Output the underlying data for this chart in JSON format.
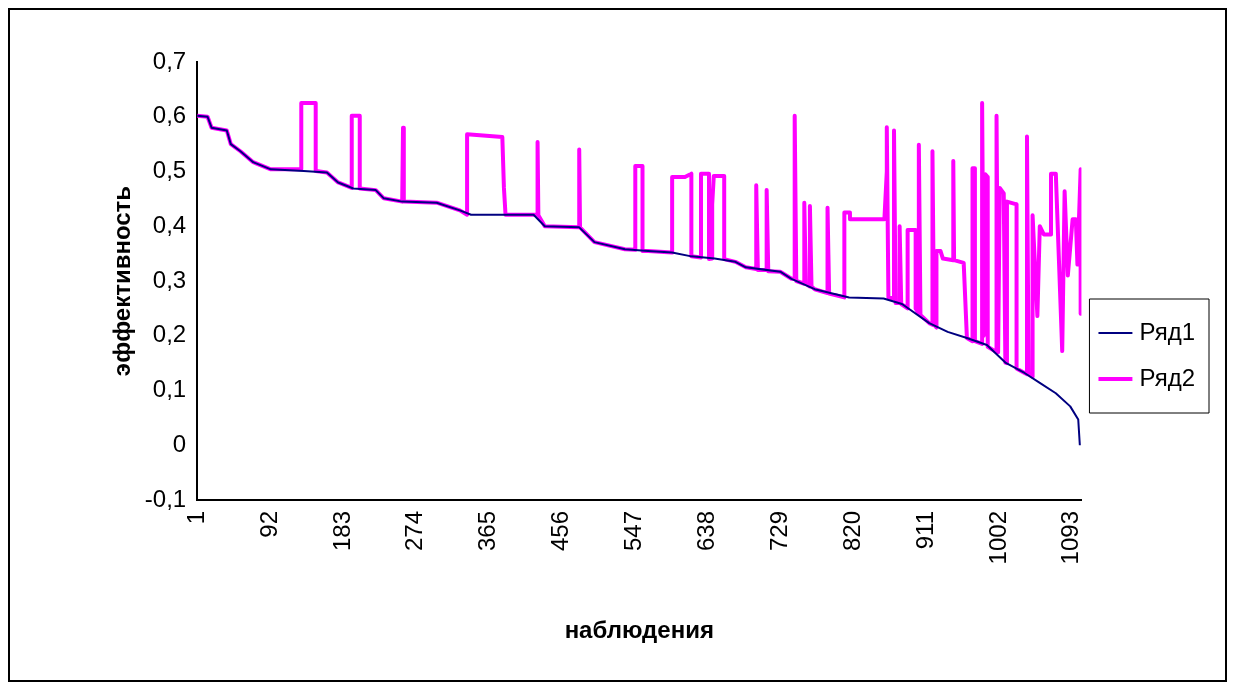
{
  "chart_data": {
    "type": "line",
    "xlabel": "наблюдения",
    "ylabel": "эффективность",
    "legend": "right",
    "marker": "none",
    "xlim": [
      1,
      1105
    ],
    "xticks": [
      1,
      92,
      183,
      274,
      365,
      456,
      547,
      638,
      729,
      820,
      911,
      1002,
      1093
    ],
    "ylim": [
      -0.1,
      0.7
    ],
    "yticks": [
      {
        "value": -0.1,
        "label": "-0,1"
      },
      {
        "value": 0,
        "label": "0"
      },
      {
        "value": 0.1,
        "label": "0,1"
      },
      {
        "value": 0.2,
        "label": "0,2"
      },
      {
        "value": 0.3,
        "label": "0,3"
      },
      {
        "value": 0.4,
        "label": "0,4"
      },
      {
        "value": 0.5,
        "label": "0,5"
      },
      {
        "value": 0.6,
        "label": "0,6"
      },
      {
        "value": 0.7,
        "label": "0,7"
      }
    ],
    "series": [
      {
        "name": "Ряд1",
        "color": "#000080",
        "x": [
          1,
          14,
          19,
          38,
          43,
          55,
          71,
          93,
          134,
          163,
          177,
          196,
          224,
          234,
          257,
          300,
          329,
          343,
          421,
          435,
          478,
          497,
          535,
          564,
          594,
          618,
          647,
          673,
          686,
          729,
          743,
          772,
          815,
          858,
          881,
          915,
          938,
          962,
          987,
          1010,
          1034,
          1053,
          1073,
          1091,
          1101,
          1103
        ],
        "values": [
          0.602,
          0.6,
          0.58,
          0.575,
          0.55,
          0.537,
          0.517,
          0.504,
          0.501,
          0.498,
          0.48,
          0.469,
          0.466,
          0.451,
          0.445,
          0.443,
          0.429,
          0.421,
          0.421,
          0.4,
          0.398,
          0.371,
          0.358,
          0.355,
          0.352,
          0.345,
          0.341,
          0.335,
          0.325,
          0.317,
          0.304,
          0.285,
          0.27,
          0.268,
          0.258,
          0.223,
          0.207,
          0.196,
          0.183,
          0.151,
          0.132,
          0.114,
          0.095,
          0.071,
          0.047,
          0
        ]
      },
      {
        "name": "Ряд2",
        "color": "#ff00ff",
        "x": [
          1,
          14,
          19,
          38,
          43,
          55,
          71,
          93,
          131,
          131,
          149,
          149,
          163,
          177,
          194,
          194,
          204,
          204,
          224,
          234,
          257,
          258,
          259,
          300,
          329,
          338,
          338,
          382,
          384,
          386,
          421,
          426,
          426,
          427,
          435,
          478,
          478,
          479,
          497,
          535,
          548,
          548,
          557,
          557,
          564,
          594,
          594,
          610,
          618,
          618,
          630,
          630,
          640,
          640,
          644,
          644,
          646,
          659,
          659,
          673,
          686,
          699,
          699,
          701,
          712,
          712,
          714,
          729,
          743,
          747,
          747,
          749,
          759,
          759,
          761,
          766,
          766,
          768,
          772,
          788,
          788,
          790,
          809,
          809,
          816,
          816,
          859,
          862,
          862,
          864,
          871,
          871,
          873,
          878,
          878,
          880,
          888,
          888,
          898,
          898,
          902,
          902,
          904,
          915,
          919,
          919,
          921,
          924,
          924,
          929,
          932,
          945,
          945,
          946,
          958,
          962,
          969,
          969,
          972,
          972,
          981,
          981,
          983,
          985,
          988,
          988,
          999,
          999,
          1001,
          1003,
          1008,
          1010,
          1012,
          1012,
          1024,
          1024,
          1034,
          1037,
          1037,
          1039,
          1044,
          1044,
          1050,
          1053,
          1058,
          1067,
          1067,
          1073,
          1081,
          1084,
          1088,
          1094,
          1098,
          1100,
          1104,
          1104
        ],
        "values": [
          0.602,
          0.6,
          0.58,
          0.575,
          0.55,
          0.537,
          0.517,
          0.504,
          0.504,
          0.625,
          0.625,
          0.501,
          0.498,
          0.48,
          0.47,
          0.602,
          0.602,
          0.469,
          0.466,
          0.451,
          0.445,
          0.58,
          0.445,
          0.443,
          0.429,
          0.421,
          0.568,
          0.563,
          0.47,
          0.421,
          0.421,
          0.421,
          0.554,
          0.42,
          0.4,
          0.398,
          0.54,
          0.398,
          0.371,
          0.358,
          0.357,
          0.51,
          0.51,
          0.355,
          0.355,
          0.352,
          0.49,
          0.49,
          0.496,
          0.345,
          0.343,
          0.496,
          0.496,
          0.34,
          0.341,
          0.44,
          0.492,
          0.492,
          0.34,
          0.335,
          0.325,
          0.322,
          0.475,
          0.32,
          0.32,
          0.466,
          0.318,
          0.317,
          0.304,
          0.304,
          0.602,
          0.3,
          0.295,
          0.443,
          0.295,
          0.29,
          0.437,
          0.29,
          0.285,
          0.278,
          0.434,
          0.277,
          0.27,
          0.425,
          0.425,
          0.413,
          0.413,
          0.5,
          0.581,
          0.27,
          0.268,
          0.575,
          0.26,
          0.26,
          0.4,
          0.258,
          0.25,
          0.393,
          0.393,
          0.25,
          0.24,
          0.549,
          0.238,
          0.223,
          0.22,
          0.537,
          0.22,
          0.215,
          0.355,
          0.355,
          0.341,
          0.338,
          0.519,
          0.338,
          0.333,
          0.196,
          0.19,
          0.506,
          0.506,
          0.19,
          0.185,
          0.625,
          0.2,
          0.495,
          0.49,
          0.18,
          0.17,
          0.602,
          0.17,
          0.47,
          0.46,
          0.151,
          0.15,
          0.445,
          0.44,
          0.14,
          0.132,
          0.13,
          0.564,
          0.13,
          0.125,
          0.42,
          0.236,
          0.4,
          0.385,
          0.385,
          0.496,
          0.496,
          0.172,
          0.464,
          0.31,
          0.413,
          0.413,
          0.33,
          0.504,
          0.24
        ]
      }
    ]
  }
}
